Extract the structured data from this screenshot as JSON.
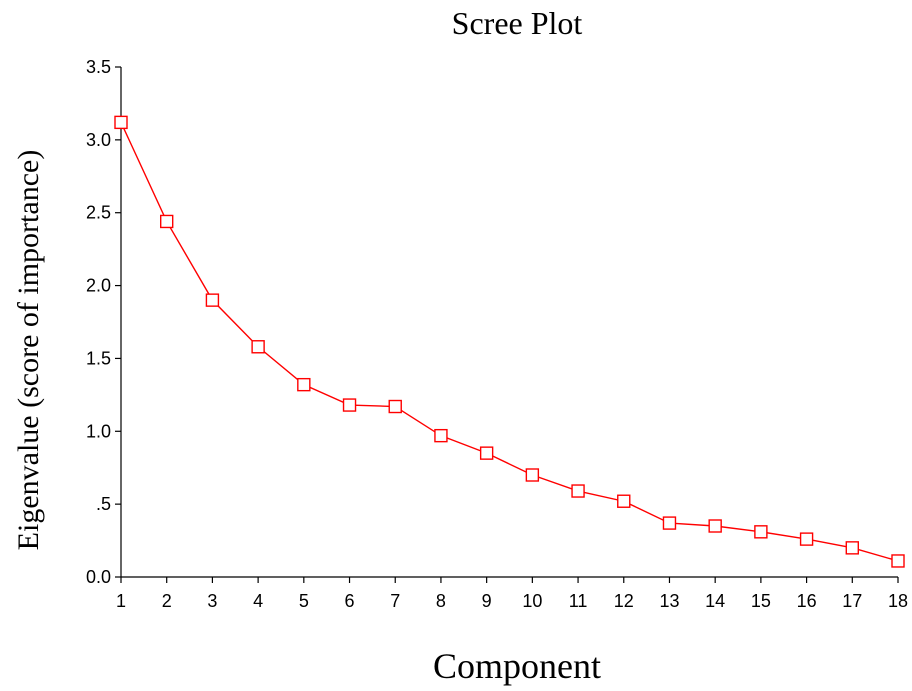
{
  "chart_data": {
    "type": "line",
    "title": "Scree Plot",
    "xlabel": "Component",
    "ylabel": "Eigenvalue (score of importance)",
    "x": [
      1,
      2,
      3,
      4,
      5,
      6,
      7,
      8,
      9,
      10,
      11,
      12,
      13,
      14,
      15,
      16,
      17,
      18
    ],
    "x_tick_labels": [
      "1",
      "2",
      "3",
      "4",
      "5",
      "6",
      "7",
      "8",
      "9",
      "10",
      "11",
      "12",
      "13",
      "14",
      "15",
      "16",
      "17",
      "18"
    ],
    "y_tick_values": [
      0,
      0.5,
      1,
      1.5,
      2,
      2.5,
      3,
      3.5
    ],
    "y_tick_labels": [
      "0.0",
      ".5",
      "1.0",
      "1.5",
      "2.0",
      "2.5",
      "3.0",
      "3.5"
    ],
    "ylim": [
      0,
      3.5
    ],
    "xlim": [
      1,
      18
    ],
    "grid": false,
    "legend": "none",
    "series": [
      {
        "values": [
          3.12,
          2.44,
          1.9,
          1.58,
          1.32,
          1.18,
          1.17,
          0.97,
          0.85,
          0.7,
          0.59,
          0.52,
          0.37,
          0.35,
          0.31,
          0.26,
          0.2,
          0.11
        ],
        "color": "#ff0000",
        "marker": "open-square"
      }
    ]
  }
}
